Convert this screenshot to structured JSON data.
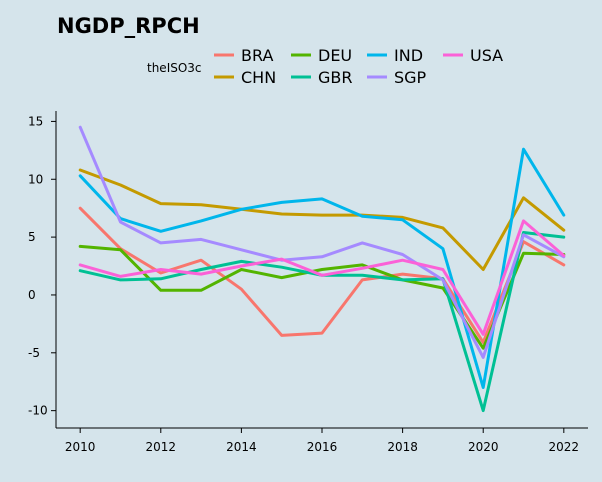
{
  "chart_data": {
    "type": "line",
    "title": "NGDP_RPCH",
    "legend_title": "theISO3c",
    "legend_position": "top",
    "xlabel": "",
    "ylabel": "",
    "x": [
      2010,
      2011,
      2012,
      2013,
      2014,
      2015,
      2016,
      2017,
      2018,
      2019,
      2020,
      2021,
      2022
    ],
    "x_ticks": [
      2010,
      2012,
      2014,
      2016,
      2018,
      2020,
      2022
    ],
    "y_ticks": [
      -10,
      -5,
      0,
      5,
      10,
      15
    ],
    "xlim": [
      2009.4,
      2022.6
    ],
    "ylim": [
      -11.5,
      15.9
    ],
    "grid": false,
    "series": [
      {
        "name": "BRA",
        "color": "#f8766d",
        "values": [
          7.5,
          4.0,
          1.9,
          3.0,
          0.5,
          -3.5,
          -3.3,
          1.3,
          1.8,
          1.4,
          -4.1,
          4.6,
          2.6
        ]
      },
      {
        "name": "CHN",
        "color": "#c49a00",
        "values": [
          10.8,
          9.5,
          7.9,
          7.8,
          7.4,
          7.0,
          6.9,
          6.9,
          6.7,
          5.8,
          2.2,
          8.4,
          5.6
        ]
      },
      {
        "name": "DEU",
        "color": "#53b400",
        "values": [
          4.2,
          3.9,
          0.4,
          0.4,
          2.2,
          1.5,
          2.2,
          2.6,
          1.3,
          0.6,
          -4.6,
          3.6,
          3.5
        ]
      },
      {
        "name": "GBR",
        "color": "#00c094",
        "values": [
          2.1,
          1.3,
          1.4,
          2.2,
          2.9,
          2.4,
          1.7,
          1.7,
          1.3,
          1.4,
          -10.0,
          5.4,
          5.0
        ]
      },
      {
        "name": "IND",
        "color": "#00b6eb",
        "values": [
          10.3,
          6.6,
          5.5,
          6.4,
          7.4,
          8.0,
          8.3,
          6.8,
          6.5,
          4.0,
          -8.0,
          12.6,
          6.9
        ]
      },
      {
        "name": "SGP",
        "color": "#a58aff",
        "values": [
          14.5,
          6.3,
          4.5,
          4.8,
          3.9,
          3.0,
          3.3,
          4.5,
          3.5,
          1.3,
          -5.4,
          5.2,
          3.3
        ]
      },
      {
        "name": "USA",
        "color": "#fb61d7",
        "values": [
          2.6,
          1.6,
          2.2,
          1.8,
          2.5,
          3.1,
          1.7,
          2.3,
          3.0,
          2.2,
          -3.4,
          6.4,
          3.4
        ]
      }
    ]
  }
}
